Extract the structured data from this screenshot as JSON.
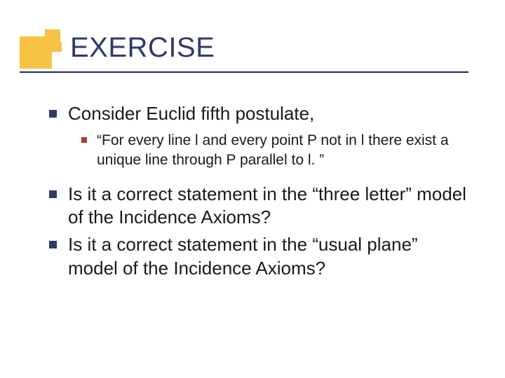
{
  "colors": {
    "accent_yellow": "#f6c244",
    "accent_red": "#b63a2a",
    "title_text": "#2f3a6b",
    "underline": "#22275a",
    "bullet_lvl1": "#2f3a6b",
    "bullet_lvl2": "#b63a2a",
    "body_text": "#1a1a1a",
    "background": "#ffffff"
  },
  "typography": {
    "title_fontsize": 40,
    "lvl1_fontsize": 26,
    "lvl2_fontsize": 21,
    "font_family": "Verdana"
  },
  "title": "EXERCISE",
  "items": [
    {
      "text": "Consider Euclid fifth postulate,",
      "sub": [
        {
          "text": "“For every line l and every point P not in l there exist a unique line through P parallel to l. ”"
        }
      ]
    },
    {
      "text": "Is it a correct statement in the “three letter” model of the Incidence Axioms?"
    },
    {
      "text": "Is it a correct statement in the “usual plane” model of the Incidence Axioms?"
    }
  ]
}
